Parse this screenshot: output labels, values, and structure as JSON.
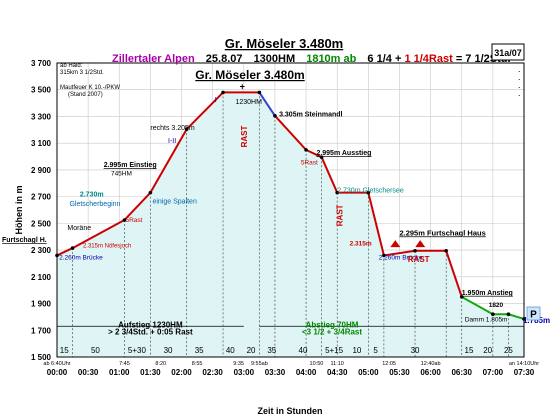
{
  "header": {
    "title": "Gr. Möseler 3.480m",
    "sub_region": "Zillertaler Alpen",
    "sub_date": "25.8.07",
    "sub_hm": "1300HM",
    "sub_descent": "1810m ab",
    "sub_time_a": "6 1/4 + ",
    "sub_time_rast": "1 1/4Rast",
    "sub_time_b": " = 7 1/2Std.",
    "code": "31a/07",
    "note_lines": [
      "ab Haid:",
      "315km 3 1/2Std.",
      "Mautfeuer K 10.-/PKW",
      "(Stand 2007)"
    ],
    "dots": [
      ".",
      ".",
      ".",
      "."
    ]
  },
  "chart_data": {
    "type": "line",
    "title": "Gr. Möseler 3.480m",
    "xlabel": "Zeit in Stunden",
    "ylabel": "Höhen in m",
    "xlim": [
      0,
      450
    ],
    "ylim": [
      1500,
      3700
    ],
    "y_ticks": [
      "1 500",
      "1 700",
      "1 900",
      "2 100",
      "2 300",
      "2 500",
      "2 700",
      "2 900",
      "3 100",
      "3 300",
      "3 500",
      "3 700"
    ],
    "y_tick_values": [
      1500,
      1700,
      1900,
      2100,
      2300,
      2500,
      2700,
      2900,
      3100,
      3300,
      3500,
      3700
    ],
    "x_ticks": [
      "00:00",
      "00:30",
      "01:00",
      "01:30",
      "02:00",
      "02:30",
      "03:00",
      "03:30",
      "04:00",
      "04:30",
      "05:00",
      "05:30",
      "06:00",
      "06:30",
      "07:00",
      "07:30"
    ],
    "x_tick_values": [
      0,
      30,
      60,
      90,
      120,
      150,
      180,
      210,
      240,
      270,
      300,
      330,
      360,
      390,
      420,
      450
    ],
    "grid": true,
    "series": [
      {
        "name": "Aufstieg",
        "color": "#cc0000",
        "x": [
          0,
          15,
          65,
          90,
          125,
          160,
          180
        ],
        "y": [
          2260,
          2315,
          2525,
          2730,
          3205,
          3480,
          3480
        ]
      },
      {
        "name": "Gipfel",
        "color": "#3344cc",
        "x": [
          0,
          15,
          65,
          90,
          125,
          160,
          180,
          195
        ],
        "y": [
          2260,
          2315,
          2525,
          2730,
          3205,
          3480,
          3480,
          3480
        ]
      },
      {
        "name": "Abstieg",
        "color": "#cc0000",
        "x": [
          195,
          210,
          240,
          255,
          270,
          295,
          300,
          310,
          320,
          345,
          360,
          375
        ],
        "y": [
          3480,
          3305,
          3050,
          2995,
          2730,
          2730,
          2315,
          2260,
          2295,
          2295,
          2295,
          2295
        ]
      },
      {
        "name": "Schluss",
        "color": "#11aa11",
        "x": [
          375,
          390,
          405,
          420,
          435,
          450
        ],
        "y": [
          1950,
          1950,
          1805,
          1820,
          1820,
          1785
        ]
      }
    ],
    "profile_x": [
      0,
      15,
      65,
      90,
      125,
      160,
      195,
      210,
      240,
      255,
      270,
      300,
      315,
      345,
      375,
      390,
      420,
      435,
      450
    ],
    "profile_y": [
      2260,
      2315,
      2525,
      2730,
      3205,
      3480,
      3480,
      3305,
      3050,
      2995,
      2730,
      2730,
      2260,
      2295,
      2295,
      1950,
      1820,
      1820,
      1785
    ],
    "segment_colors": [
      "#cc0000",
      "#cc0000",
      "#cc0000",
      "#cc0000",
      "#cc0000",
      "#cc0000",
      "#3344cc",
      "#cc0000",
      "#cc0000",
      "#cc0000",
      "#cc0000",
      "#cc0000",
      "#cc0000",
      "#cc0000",
      "#cc0000",
      "#11aa11",
      "#11aa11",
      "#11aa11"
    ],
    "segment_minutes": [
      "15",
      "50",
      "5+30",
      "30",
      "35",
      "40",
      "20",
      "35",
      "40",
      "5+15",
      "10",
      "5",
      "30",
      "15",
      "20",
      "25"
    ],
    "segment_minutes_x": [
      7,
      37,
      77,
      107,
      137,
      167,
      187,
      207,
      237,
      267,
      289,
      307,
      345,
      397,
      415,
      435
    ],
    "clock_times": [
      {
        "label": "ab 6:40Uhr",
        "x": 0
      },
      {
        "label": "7:45",
        "x": 65
      },
      {
        "label": "8:20",
        "x": 100
      },
      {
        "label": "8:55",
        "x": 135
      },
      {
        "label": "9:35",
        "x": 175
      },
      {
        "label": "9:55ab",
        "x": 195
      },
      {
        "label": "10:50",
        "x": 250
      },
      {
        "label": "11:10",
        "x": 270
      },
      {
        "label": "12:05",
        "x": 320
      },
      {
        "label": "12:40ab",
        "x": 360
      },
      {
        "label": "an 14:10Uhr",
        "x": 450
      }
    ],
    "annotations": {
      "start": "Furtschagl H.",
      "bridge1": "2.260m Brücke",
      "noefesjoch": "2.315m Nöfesjoch",
      "moraene": "Moräne",
      "gletscherbeginn": "Gletscherbeginn",
      "p2730": "2.730m",
      "rast5": "5Rast",
      "einstieg": "2.995m Einstieg",
      "einstieg_sub": "745HM",
      "spalten": "einige Spalten",
      "rechts": "rechts 3.205m",
      "grade1": "I-II",
      "grade2": "I",
      "summit_hm": "1230HM",
      "summit_cross": "+",
      "steinmandl": "3.305m Steinmandl",
      "ausstieg": "2.995m Ausstieg",
      "rast5b": "5Rast",
      "gletschersee": "2.730m Gletschersee",
      "rast_vertical1": "RAST",
      "rast_vertical2": "RAST",
      "p2315": "2.315m",
      "bridge2": "2.260m Brücke",
      "furtschagl": "2.295m Furtschagl Haus",
      "rast3": "RAST",
      "anstieg": "1.950m Anstieg",
      "p1820": "1820",
      "damm": "Damm 1.805m",
      "end": "1.785m",
      "parking": "P",
      "aufstieg_l1": "Aufstieg 1230HM",
      "aufstieg_l2": "> 2 3/4Std. + 0:05 Rast",
      "abstieg_l1": "Abstieg 70HM",
      "abstieg_l2": "<3 1/2 + 3/4Rast"
    }
  }
}
